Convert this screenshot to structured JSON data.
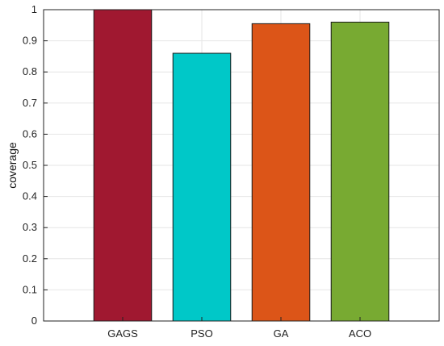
{
  "chart_data": {
    "type": "bar",
    "title": "",
    "xlabel": "",
    "ylabel": "coverage",
    "categories": [
      "GAGS",
      "PSO",
      "GA",
      "ACO"
    ],
    "values": [
      1.0,
      0.86,
      0.955,
      0.96
    ],
    "colors": [
      "#a01830",
      "#00c8c8",
      "#dc5518",
      "#78aa32"
    ],
    "ylim": [
      0,
      1
    ],
    "yticks": [
      0,
      0.1,
      0.2,
      0.3,
      0.4,
      0.5,
      0.6,
      0.7,
      0.8,
      0.9,
      1
    ],
    "grid": true,
    "box": true
  }
}
